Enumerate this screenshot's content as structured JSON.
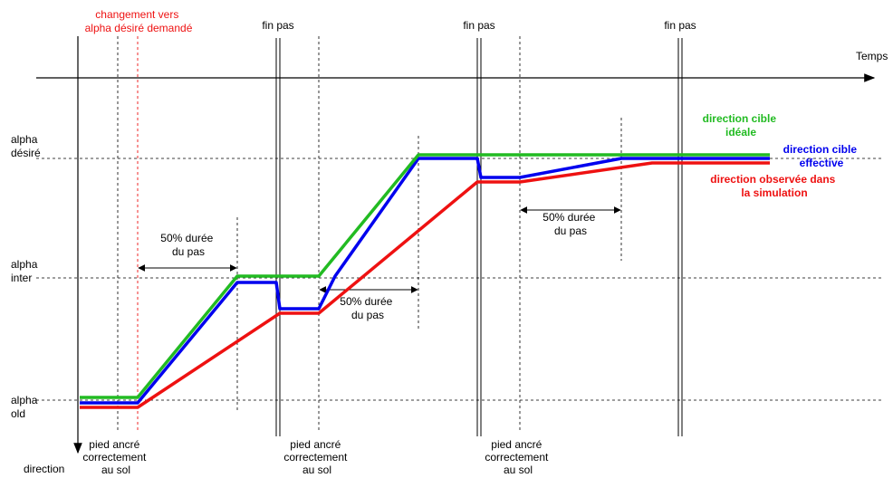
{
  "axis": {
    "time_label": "Temps",
    "direction_label": "direction"
  },
  "levels": {
    "alpha_desire": [
      "alpha",
      "désiré"
    ],
    "alpha_inter": [
      "alpha",
      "inter"
    ],
    "alpha_old": [
      "alpha",
      "old"
    ]
  },
  "top_labels": {
    "changement": [
      "changement vers",
      "alpha désiré demandé"
    ],
    "fin_pas": "fin pas"
  },
  "bottom_labels": {
    "pied_ancre": [
      "pied ancré",
      "correctement",
      "au sol"
    ]
  },
  "durations": {
    "half_step": [
      "50% durée",
      "du pas"
    ]
  },
  "legend": {
    "ideal": [
      "direction cible",
      "idéale"
    ],
    "effective": [
      "direction cible",
      "effective"
    ],
    "observed": [
      "direction observée dans",
      "la simulation"
    ]
  },
  "colors": {
    "ideal": "#22bb22",
    "effective": "#0000ee",
    "observed": "#ee1111",
    "changement_text": "#ee1111"
  }
}
